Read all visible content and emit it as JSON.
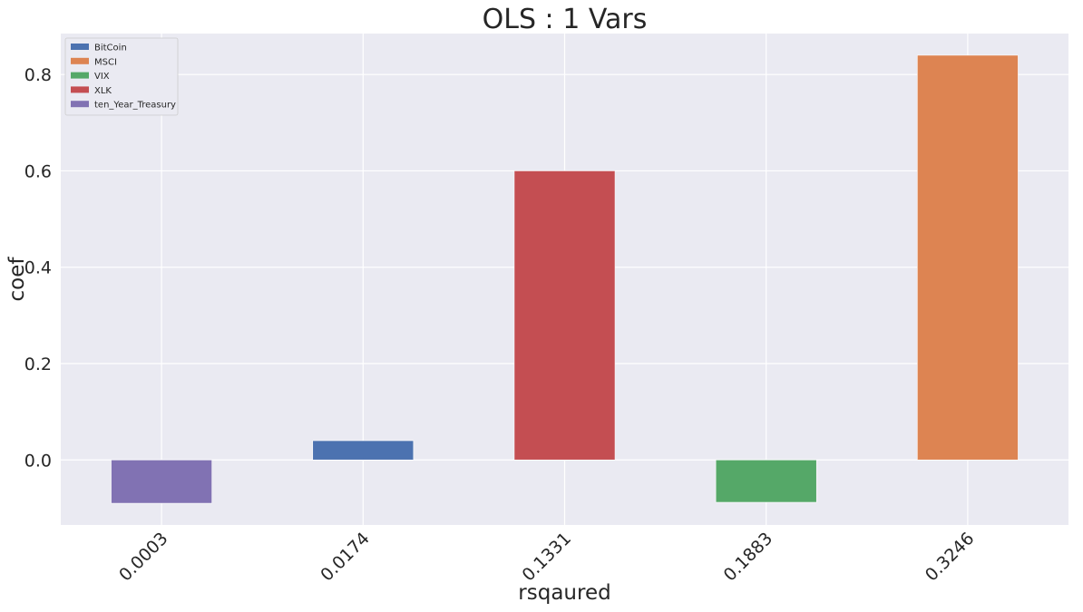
{
  "chart_data": {
    "type": "bar",
    "title": "OLS : 1 Vars",
    "xlabel": "rsqaured",
    "ylabel": "coef",
    "categories": [
      "0.0003",
      "0.0174",
      "0.1331",
      "0.1883",
      "0.3246"
    ],
    "bars": [
      {
        "category": "0.0003",
        "series": "ten_Year_Treasury",
        "value": -0.09
      },
      {
        "category": "0.0174",
        "series": "BitCoin",
        "value": 0.04
      },
      {
        "category": "0.1331",
        "series": "XLK",
        "value": 0.6
      },
      {
        "category": "0.1883",
        "series": "VIX",
        "value": -0.088
      },
      {
        "category": "0.3246",
        "series": "MSCI",
        "value": 0.84
      }
    ],
    "series": [
      {
        "name": "BitCoin",
        "color": "#4c72b0"
      },
      {
        "name": "MSCI",
        "color": "#dd8452"
      },
      {
        "name": "VIX",
        "color": "#55a868"
      },
      {
        "name": "XLK",
        "color": "#c44e52"
      },
      {
        "name": "ten_Year_Treasury",
        "color": "#8172b3"
      }
    ],
    "ylim": [
      -0.135,
      0.885
    ],
    "yticks": [
      0.0,
      0.2,
      0.4,
      0.6,
      0.8
    ],
    "ytick_labels": [
      "0.0",
      "0.2",
      "0.4",
      "0.6",
      "0.8"
    ],
    "grid": true,
    "legend_position": "top-left",
    "colors": {
      "background": "#eaeaf2",
      "grid": "#ffffff"
    }
  }
}
